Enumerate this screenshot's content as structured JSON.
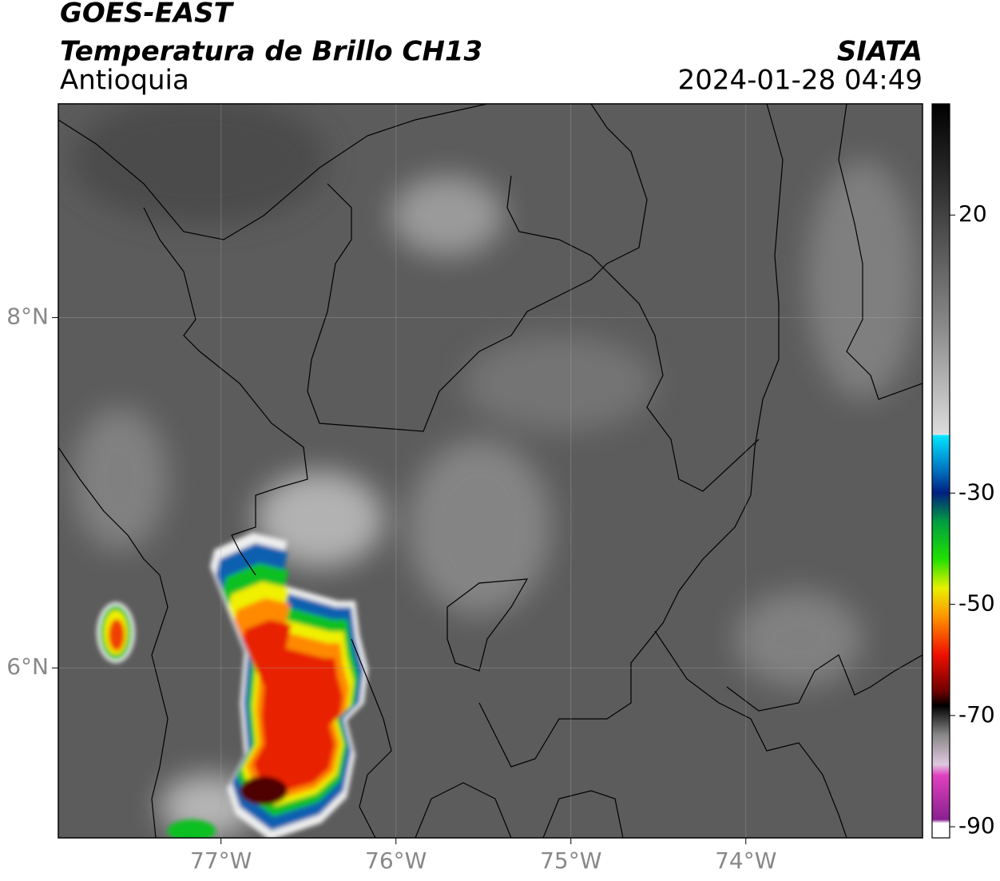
{
  "header": {
    "title": "GOES-EAST",
    "subtitle": "Temperatura de Brillo CH13",
    "region": "Antioquia",
    "source": "SIATA",
    "datetime": "2024-01-28 04:49"
  },
  "map": {
    "xlim": [
      -77.93,
      -72.99
    ],
    "ylim": [
      5.03,
      9.22
    ],
    "xticks": [
      {
        "value": -77,
        "label": "77°W"
      },
      {
        "value": -76,
        "label": "76°W"
      },
      {
        "value": -75,
        "label": "75°W"
      },
      {
        "value": -74,
        "label": "74°W"
      }
    ],
    "yticks": [
      {
        "value": 8,
        "label": "8°N"
      },
      {
        "value": 6,
        "label": "6°N"
      }
    ]
  },
  "colorbar": {
    "lim": [
      -92,
      40
    ],
    "ticks": [
      20,
      -30,
      -50,
      -70,
      -90
    ]
  }
}
